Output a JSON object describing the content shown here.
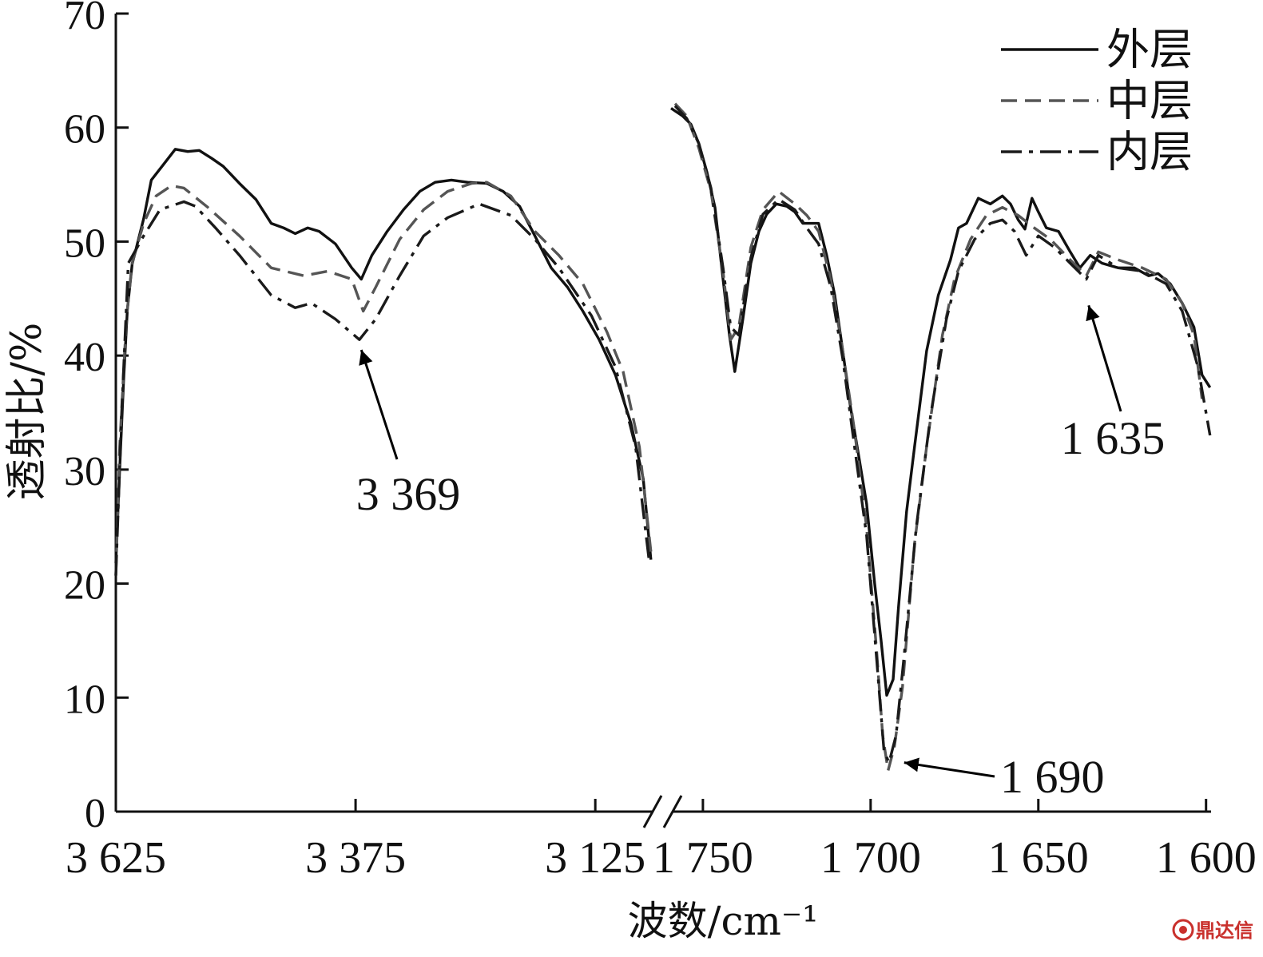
{
  "chart_data": {
    "type": "line",
    "xlabel": "波数/cm⁻¹",
    "ylabel": "透射比/%",
    "ylim": [
      0,
      70
    ],
    "yticks": [
      0,
      10,
      20,
      30,
      40,
      50,
      60,
      70
    ],
    "grid": false,
    "x_axis_broken": true,
    "x_segments": [
      {
        "xlim": [
          3625,
          3066
        ],
        "ticks": [
          3625,
          3375,
          3125
        ],
        "tick_labels": [
          "3 625",
          "3 375",
          "3 125"
        ]
      },
      {
        "xlim": [
          1759.5,
          1598.5
        ],
        "ticks": [
          1750,
          1700,
          1650,
          1600
        ],
        "tick_labels": [
          "1 750",
          "1 700",
          "1 650",
          "1 600"
        ]
      }
    ],
    "legend": {
      "position": "top-right"
    },
    "series": [
      {
        "name": "外层",
        "line_style": "solid",
        "color": "#111111",
        "segments": [
          [
            [
              3625,
              21.8
            ],
            [
              3621,
              30.0
            ],
            [
              3617,
              37.6
            ],
            [
              3613,
              44.0
            ],
            [
              3608,
              48.0
            ],
            [
              3596,
              52.0
            ],
            [
              3588,
              55.4
            ],
            [
              3575,
              56.8
            ],
            [
              3563,
              58.1
            ],
            [
              3550,
              57.9
            ],
            [
              3538,
              58.0
            ],
            [
              3525,
              57.3
            ],
            [
              3513,
              56.6
            ],
            [
              3496,
              55.1
            ],
            [
              3479,
              53.7
            ],
            [
              3463,
              51.6
            ],
            [
              3450,
              51.2
            ],
            [
              3438,
              50.7
            ],
            [
              3425,
              51.2
            ],
            [
              3413,
              50.9
            ],
            [
              3396,
              49.8
            ],
            [
              3379,
              47.7
            ],
            [
              3369,
              46.7
            ],
            [
              3358,
              48.8
            ],
            [
              3342,
              50.9
            ],
            [
              3325,
              52.8
            ],
            [
              3308,
              54.4
            ],
            [
              3292,
              55.2
            ],
            [
              3275,
              55.4
            ],
            [
              3258,
              55.2
            ],
            [
              3238,
              55.1
            ],
            [
              3221,
              54.4
            ],
            [
              3204,
              53.1
            ],
            [
              3188,
              50.5
            ],
            [
              3171,
              47.7
            ],
            [
              3154,
              46.0
            ],
            [
              3138,
              43.9
            ],
            [
              3121,
              41.4
            ],
            [
              3104,
              38.3
            ],
            [
              3088,
              34.1
            ],
            [
              3075,
              29.2
            ],
            [
              3067,
              22.1
            ]
          ],
          [
            [
              1759.5,
              61.7
            ],
            [
              1756.0,
              61.0
            ],
            [
              1753.6,
              60.3
            ],
            [
              1751.2,
              58.6
            ],
            [
              1748.8,
              56.1
            ],
            [
              1746.4,
              53.0
            ],
            [
              1744.0,
              46.7
            ],
            [
              1742.1,
              41.8
            ],
            [
              1740.5,
              38.6
            ],
            [
              1738.1,
              43.2
            ],
            [
              1735.7,
              48.1
            ],
            [
              1733.3,
              50.9
            ],
            [
              1731.0,
              52.4
            ],
            [
              1728.1,
              53.3
            ],
            [
              1725.0,
              53.1
            ],
            [
              1722.6,
              52.6
            ],
            [
              1720.2,
              51.6
            ],
            [
              1717.9,
              51.6
            ],
            [
              1715.5,
              51.6
            ],
            [
              1713.1,
              48.8
            ],
            [
              1710.7,
              45.3
            ],
            [
              1708.3,
              40.4
            ],
            [
              1706.0,
              35.5
            ],
            [
              1703.6,
              31.3
            ],
            [
              1701.2,
              27.0
            ],
            [
              1698.8,
              20.0
            ],
            [
              1696.9,
              15.1
            ],
            [
              1695.2,
              10.2
            ],
            [
              1693.3,
              11.6
            ],
            [
              1691.7,
              17.9
            ],
            [
              1689.3,
              26.3
            ],
            [
              1686.9,
              32.0
            ],
            [
              1683.3,
              40.4
            ],
            [
              1679.8,
              45.3
            ],
            [
              1676.2,
              48.4
            ],
            [
              1673.8,
              51.2
            ],
            [
              1671.4,
              51.6
            ],
            [
              1667.9,
              53.8
            ],
            [
              1664.3,
              53.3
            ],
            [
              1660.7,
              54.0
            ],
            [
              1658.3,
              53.3
            ],
            [
              1656.0,
              51.9
            ],
            [
              1654.0,
              51.1
            ],
            [
              1651.9,
              53.8
            ],
            [
              1650.0,
              52.6
            ],
            [
              1647.6,
              51.2
            ],
            [
              1644.0,
              50.9
            ],
            [
              1640.5,
              49.1
            ],
            [
              1637.6,
              47.7
            ],
            [
              1634.5,
              48.8
            ],
            [
              1631.0,
              48.1
            ],
            [
              1626.2,
              47.7
            ],
            [
              1621.4,
              47.7
            ],
            [
              1617.1,
              47.0
            ],
            [
              1614.3,
              47.2
            ],
            [
              1610.7,
              46.3
            ],
            [
              1607.1,
              44.6
            ],
            [
              1603.6,
              42.5
            ],
            [
              1601.2,
              38.3
            ],
            [
              1598.8,
              37.2
            ]
          ]
        ]
      },
      {
        "name": "中层",
        "line_style": "dashed",
        "color": "#555555",
        "segments": [
          [
            [
              3625,
              20.7
            ],
            [
              3621,
              32.0
            ],
            [
              3614,
              43.2
            ],
            [
              3608,
              48.1
            ],
            [
              3596,
              51.6
            ],
            [
              3583,
              54.0
            ],
            [
              3567,
              54.9
            ],
            [
              3554,
              54.7
            ],
            [
              3529,
              53.0
            ],
            [
              3496,
              50.5
            ],
            [
              3463,
              47.7
            ],
            [
              3429,
              47.0
            ],
            [
              3404,
              47.4
            ],
            [
              3379,
              46.7
            ],
            [
              3367,
              43.9
            ],
            [
              3354,
              46.0
            ],
            [
              3329,
              50.2
            ],
            [
              3304,
              52.8
            ],
            [
              3279,
              54.4
            ],
            [
              3254,
              55.1
            ],
            [
              3238,
              55.2
            ],
            [
              3213,
              54.0
            ],
            [
              3188,
              50.9
            ],
            [
              3163,
              48.8
            ],
            [
              3138,
              46.3
            ],
            [
              3113,
              42.1
            ],
            [
              3096,
              38.6
            ],
            [
              3079,
              32.0
            ],
            [
              3067,
              22.8
            ]
          ],
          [
            [
              1758.3,
              62.1
            ],
            [
              1754.8,
              61.0
            ],
            [
              1751.2,
              58.2
            ],
            [
              1747.6,
              54.4
            ],
            [
              1744.0,
              47.4
            ],
            [
              1741.7,
              41.4
            ],
            [
              1739.3,
              42.5
            ],
            [
              1735.7,
              49.5
            ],
            [
              1732.1,
              52.8
            ],
            [
              1727.4,
              54.4
            ],
            [
              1722.6,
              53.3
            ],
            [
              1719.0,
              52.3
            ],
            [
              1715.5,
              50.9
            ],
            [
              1711.9,
              46.7
            ],
            [
              1708.3,
              40.4
            ],
            [
              1704.8,
              33.4
            ],
            [
              1701.2,
              24.9
            ],
            [
              1698.1,
              13.7
            ],
            [
              1696.4,
              6.7
            ],
            [
              1694.8,
              3.6
            ],
            [
              1692.9,
              5.7
            ],
            [
              1690.5,
              10.9
            ],
            [
              1686.9,
              23.5
            ],
            [
              1683.3,
              32.0
            ],
            [
              1678.6,
              41.8
            ],
            [
              1675.0,
              46.7
            ],
            [
              1670.2,
              50.2
            ],
            [
              1665.5,
              52.3
            ],
            [
              1660.7,
              53.0
            ],
            [
              1656.0,
              52.3
            ],
            [
              1651.2,
              51.2
            ],
            [
              1646.4,
              50.2
            ],
            [
              1640.5,
              48.4
            ],
            [
              1635.7,
              47.0
            ],
            [
              1632.1,
              49.1
            ],
            [
              1626.2,
              48.4
            ],
            [
              1619.0,
              47.7
            ],
            [
              1611.9,
              46.7
            ],
            [
              1607.1,
              44.6
            ],
            [
              1603.6,
              41.8
            ],
            [
              1601.2,
              36.2
            ]
          ]
        ]
      },
      {
        "name": "内层",
        "line_style": "dash-dot",
        "color": "#1a1a1a",
        "segments": [
          [
            [
              3625,
              20.7
            ],
            [
              3619,
              34.8
            ],
            [
              3612,
              48.1
            ],
            [
              3596,
              50.5
            ],
            [
              3579,
              52.8
            ],
            [
              3554,
              53.5
            ],
            [
              3542,
              53.1
            ],
            [
              3521,
              51.2
            ],
            [
              3496,
              48.8
            ],
            [
              3463,
              45.3
            ],
            [
              3438,
              44.2
            ],
            [
              3421,
              44.6
            ],
            [
              3396,
              43.2
            ],
            [
              3371,
              41.4
            ],
            [
              3354,
              43.2
            ],
            [
              3329,
              47.0
            ],
            [
              3304,
              50.5
            ],
            [
              3279,
              52.1
            ],
            [
              3246,
              53.3
            ],
            [
              3213,
              52.3
            ],
            [
              3188,
              50.2
            ],
            [
              3163,
              47.7
            ],
            [
              3129,
              43.5
            ],
            [
              3104,
              39.0
            ],
            [
              3083,
              32.0
            ],
            [
              3069,
              22.1
            ]
          ],
          [
            [
              1758.3,
              61.9
            ],
            [
              1754.8,
              60.8
            ],
            [
              1751.2,
              58.6
            ],
            [
              1747.6,
              54.7
            ],
            [
              1744.0,
              47.7
            ],
            [
              1741.7,
              42.5
            ],
            [
              1739.3,
              41.8
            ],
            [
              1735.7,
              48.6
            ],
            [
              1732.1,
              52.4
            ],
            [
              1727.4,
              53.7
            ],
            [
              1722.6,
              52.8
            ],
            [
              1719.0,
              51.2
            ],
            [
              1715.5,
              49.8
            ],
            [
              1711.9,
              46.0
            ],
            [
              1708.3,
              39.7
            ],
            [
              1704.8,
              32.0
            ],
            [
              1701.2,
              24.2
            ],
            [
              1698.1,
              13.0
            ],
            [
              1696.0,
              5.3
            ],
            [
              1694.5,
              4.3
            ],
            [
              1692.4,
              6.7
            ],
            [
              1690.0,
              13.7
            ],
            [
              1686.4,
              24.9
            ],
            [
              1682.1,
              34.8
            ],
            [
              1677.4,
              43.2
            ],
            [
              1673.8,
              47.4
            ],
            [
              1669.0,
              50.2
            ],
            [
              1664.3,
              51.6
            ],
            [
              1660.7,
              51.9
            ],
            [
              1657.1,
              50.9
            ],
            [
              1653.6,
              48.8
            ],
            [
              1650.0,
              50.5
            ],
            [
              1645.2,
              49.5
            ],
            [
              1640.5,
              48.1
            ],
            [
              1635.7,
              46.7
            ],
            [
              1632.1,
              48.8
            ],
            [
              1626.2,
              47.7
            ],
            [
              1619.0,
              47.4
            ],
            [
              1611.9,
              46.3
            ],
            [
              1607.1,
              43.9
            ],
            [
              1602.4,
              39.0
            ],
            [
              1598.8,
              33.0
            ]
          ]
        ]
      }
    ],
    "annotations": [
      {
        "text": "3 369",
        "x": 3369,
        "y": 40.5
      },
      {
        "text": "1 690",
        "x": 1690,
        "y": 4.3
      },
      {
        "text": "1 635",
        "x": 1635,
        "y": 44.4
      }
    ]
  },
  "watermark": {
    "text": "鼎达信",
    "color": "#c9302c"
  }
}
